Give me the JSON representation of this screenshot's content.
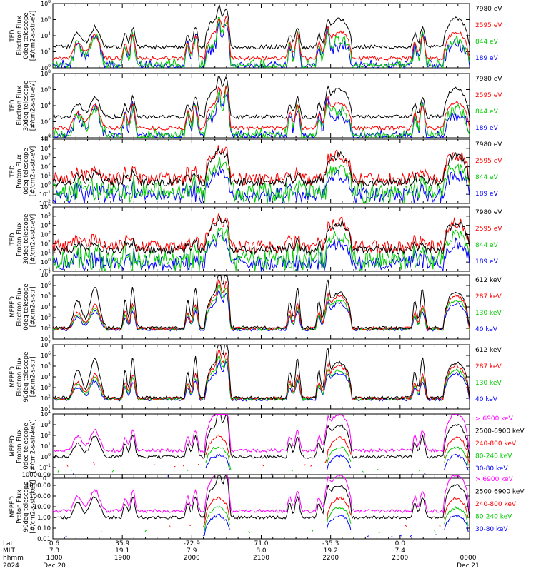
{
  "figure": {
    "footer": {
      "row_labels": [
        "Lat",
        "MLT",
        "hhmm",
        "2024"
      ],
      "columns": [
        {
          "lat": "0.6",
          "mlt": "7.3",
          "hhmm": "1800",
          "date": "Dec 20"
        },
        {
          "lat": "35.9",
          "mlt": "19.1",
          "hhmm": "1900",
          "date": ""
        },
        {
          "lat": "-72.9",
          "mlt": "7.9",
          "hhmm": "2000",
          "date": ""
        },
        {
          "lat": "71.0",
          "mlt": "8.0",
          "hhmm": "2100",
          "date": ""
        },
        {
          "lat": "-35.3",
          "mlt": "19.2",
          "hhmm": "2200",
          "date": ""
        },
        {
          "lat": "0.0",
          "mlt": "7.4",
          "hhmm": "2300",
          "date": ""
        },
        {
          "lat": "",
          "mlt": "",
          "hhmm": "0000",
          "date": "Dec 21"
        }
      ]
    }
  },
  "chart_data": [
    {
      "type": "line",
      "ylabel": "TED\nElectron Flux\n0deg telescope\n[#/cm2-s-str-eV]",
      "scale": "log",
      "ylim": [
        1,
        100000000
      ],
      "tick_labels": [
        "10^0",
        "10^2",
        "10^4",
        "10^6",
        "10^8"
      ],
      "x_range_hhmm": [
        "1800",
        "0000"
      ],
      "series": [
        {
          "name": "7980 eV",
          "color": "#000000"
        },
        {
          "name": "2595 eV",
          "color": "#ff0000"
        },
        {
          "name": "844 eV",
          "color": "#00cc00"
        },
        {
          "name": "189 eV",
          "color": "#0000ff"
        }
      ]
    },
    {
      "type": "line",
      "ylabel": "TED\nElectron Flux\n30deg telescope\n[#/cm2-s-str-eV]",
      "scale": "log",
      "ylim": [
        1,
        100000000
      ],
      "tick_labels": [
        "10^0",
        "10^2",
        "10^4",
        "10^6",
        "10^8"
      ],
      "x_range_hhmm": [
        "1800",
        "0000"
      ],
      "series": [
        {
          "name": "7980 eV",
          "color": "#000000"
        },
        {
          "name": "2595 eV",
          "color": "#ff0000"
        },
        {
          "name": "844 eV",
          "color": "#00cc00"
        },
        {
          "name": "189 eV",
          "color": "#0000ff"
        }
      ]
    },
    {
      "type": "line",
      "ylabel": "TED\nProton Flux\n0deg telescope\n[#/cm2-s-str-eV]",
      "scale": "log",
      "ylim": [
        0.01,
        100000
      ],
      "tick_labels": [
        "10^-2",
        "10^-1",
        "10^0",
        "10^1",
        "10^2",
        "10^3",
        "10^4",
        "10^5"
      ],
      "x_range_hhmm": [
        "1800",
        "0000"
      ],
      "series": [
        {
          "name": "7980 eV",
          "color": "#000000"
        },
        {
          "name": "2595 eV",
          "color": "#ff0000"
        },
        {
          "name": "844 eV",
          "color": "#00cc00"
        },
        {
          "name": "189 eV",
          "color": "#0000ff"
        }
      ]
    },
    {
      "type": "line",
      "ylabel": "TED\nProton Flux\n30deg telescope\n[#/cm2-s-str-eV]",
      "scale": "log",
      "ylim": [
        0.1,
        1000000
      ],
      "tick_labels": [
        "10^-1",
        "10^0",
        "10^1",
        "10^2",
        "10^3",
        "10^4",
        "10^5",
        "10^6"
      ],
      "x_range_hhmm": [
        "1800",
        "0000"
      ],
      "series": [
        {
          "name": "7980 eV",
          "color": "#000000"
        },
        {
          "name": "2595 eV",
          "color": "#ff0000"
        },
        {
          "name": "844 eV",
          "color": "#00cc00"
        },
        {
          "name": "189 eV",
          "color": "#0000ff"
        }
      ]
    },
    {
      "type": "line",
      "ylabel": "MEPED\nElectron Flux\n0deg telescope\n[#/cm2-s-str]",
      "scale": "log",
      "ylim": [
        10,
        10000000
      ],
      "tick_labels": [
        "10^1",
        "10^2",
        "10^3",
        "10^4",
        "10^5",
        "10^6",
        "10^7"
      ],
      "x_range_hhmm": [
        "1800",
        "0000"
      ],
      "series": [
        {
          "name": "612 keV",
          "color": "#000000"
        },
        {
          "name": "287 keV",
          "color": "#ff0000"
        },
        {
          "name": "130 keV",
          "color": "#00cc00"
        },
        {
          "name": "40 keV",
          "color": "#0000ff"
        }
      ]
    },
    {
      "type": "line",
      "ylabel": "MEPED\nElectron Flux\n90deg telescope\n[#/cm2-s-str]",
      "scale": "log",
      "ylim": [
        10,
        10000000
      ],
      "tick_labels": [
        "10^1",
        "10^2",
        "10^3",
        "10^4",
        "10^5",
        "10^6",
        "10^7"
      ],
      "x_range_hhmm": [
        "1800",
        "0000"
      ],
      "series": [
        {
          "name": "612 keV",
          "color": "#000000"
        },
        {
          "name": "287 keV",
          "color": "#ff0000"
        },
        {
          "name": "130 keV",
          "color": "#00cc00"
        },
        {
          "name": "40 keV",
          "color": "#0000ff"
        }
      ]
    },
    {
      "type": "line",
      "ylabel": "MEPED\nProton Flux\n0deg telescope\n[#/cm2-s-str-keV]",
      "scale": "log",
      "ylim": [
        0.01,
        10000
      ],
      "tick_labels": [
        "10^-2",
        "10^-1",
        "10^0",
        "10^1",
        "10^2",
        "10^3",
        "10^4"
      ],
      "x_range_hhmm": [
        "1800",
        "0000"
      ],
      "series": [
        {
          "name": "> 6900 keV",
          "color": "#ff00ff"
        },
        {
          "name": "2500-6900 keV",
          "color": "#000000"
        },
        {
          "name": "240-800 keV",
          "color": "#ff0000"
        },
        {
          "name": "80-240 keV",
          "color": "#00cc00"
        },
        {
          "name": "30-80 keV",
          "color": "#0000ff"
        }
      ]
    },
    {
      "type": "line",
      "ylabel": "MEPED\nProton Flux\n90deg telescope\n[#/cm2-s-str-keV]",
      "scale": "log",
      "ylim": [
        0.01,
        10000
      ],
      "tick_labels": [
        "0.01",
        "0.10",
        "1.00",
        "10.00",
        "100.00",
        "1000.00",
        "10000.00"
      ],
      "x_range_hhmm": [
        "1800",
        "0000"
      ],
      "series": [
        {
          "name": "> 6900 keV",
          "color": "#ff00ff"
        },
        {
          "name": "2500-6900 keV",
          "color": "#000000"
        },
        {
          "name": "240-800 keV",
          "color": "#ff0000"
        },
        {
          "name": "80-240 keV",
          "color": "#00cc00"
        },
        {
          "name": "30-80 keV",
          "color": "#0000ff"
        }
      ]
    }
  ]
}
